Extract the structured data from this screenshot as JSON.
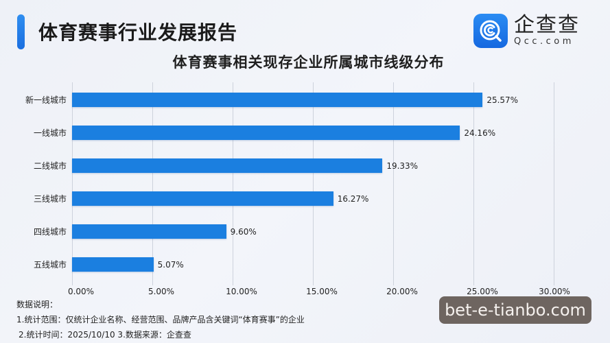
{
  "header": {
    "report_title": "体育赛事行业发展报告",
    "chart_title": "体育赛事相关现存企业所属城市线级分布",
    "accent_color": "#1f7ae6"
  },
  "logo": {
    "icon": "qcc-magnifier-c-icon",
    "name_cn": "企查查",
    "name_en": "Qcc.com",
    "color": "#1f7ae6"
  },
  "chart_data": {
    "type": "bar",
    "orientation": "horizontal",
    "title": "体育赛事相关现存企业所属城市线级分布",
    "categories": [
      "新一线城市",
      "一线城市",
      "二线城市",
      "三线城市",
      "四线城市",
      "五线城市"
    ],
    "values": [
      25.57,
      24.16,
      19.33,
      16.27,
      9.6,
      5.07
    ],
    "value_labels": [
      "25.57%",
      "24.16%",
      "19.33%",
      "16.27%",
      "9.60%",
      "5.07%"
    ],
    "unit": "%",
    "xlabel": "",
    "ylabel": "",
    "xlim": [
      0,
      30
    ],
    "x_ticks": [
      "0.00%",
      "5.00%",
      "10.00%",
      "15.00%",
      "20.00%",
      "25.00%",
      "30.00%"
    ],
    "grid": true,
    "legend": "none",
    "bar_color": "#1b7fe0"
  },
  "notes": {
    "heading": "数据说明：",
    "line1": "1.统计范围：仅统计企业名称、经营范围、品牌产品含关键词“体育赛事”的企业",
    "line2": "2.统计时间：2025/10/10  3.数据来源：企查查"
  },
  "watermark": {
    "text": "bet-e-tianbo.com"
  }
}
